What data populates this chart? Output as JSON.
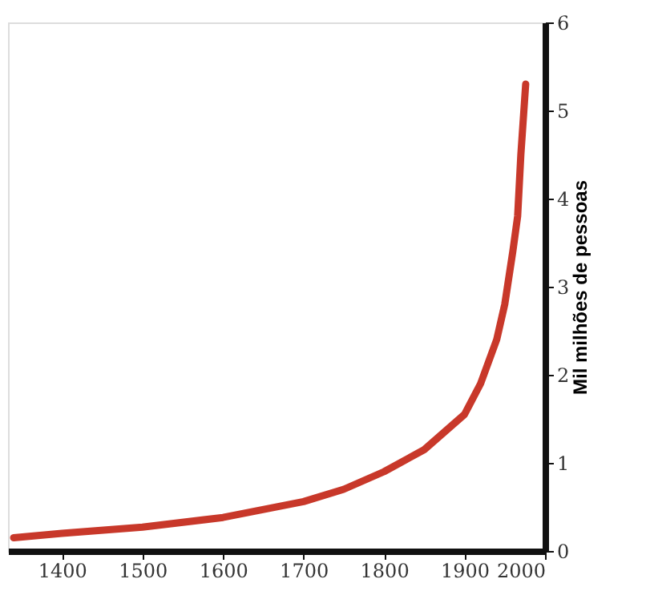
{
  "chart_data": {
    "type": "line",
    "ylabel": "Mil milhões de pessoas",
    "x": [
      1340,
      1400,
      1500,
      1600,
      1700,
      1750,
      1800,
      1850,
      1900,
      1920,
      1940,
      1950,
      1960,
      1966,
      1970,
      1973,
      1976
    ],
    "series": [
      {
        "color": "#c8382a",
        "values": [
          0.15,
          0.2,
          0.27,
          0.38,
          0.56,
          0.7,
          0.9,
          1.15,
          1.55,
          1.9,
          2.4,
          2.8,
          3.4,
          3.8,
          4.5,
          4.9,
          5.3
        ]
      }
    ],
    "xlim": [
      1333,
      2000
    ],
    "xticks": [
      1400,
      1500,
      1600,
      1700,
      1800,
      1900,
      2000
    ],
    "ylim": [
      0,
      6
    ],
    "yticks": [
      0,
      1,
      2,
      3,
      4,
      5,
      6
    ],
    "grid": false,
    "marker": "none",
    "line_style": "solid"
  }
}
